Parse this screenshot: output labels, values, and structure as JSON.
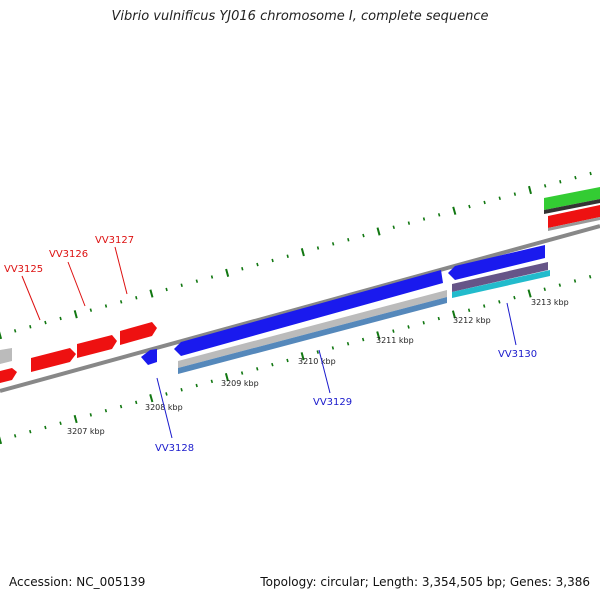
{
  "title": "Vibrio vulnificus YJ016 chromosome I, complete sequence",
  "footer": {
    "accession": "Accession: NC_005139",
    "topology": "Topology: circular; Length: 3,354,505 bp; Genes: 3,386"
  },
  "colors": {
    "forward_gene": "#ee1111",
    "reverse_gene": "#1a1aee",
    "forward_label": "#dd1111",
    "reverse_label": "#1a1acc",
    "backbone": "#888888",
    "tick": "#117711",
    "green_feature": "#33cc33",
    "gray_feature": "#bbbbbb",
    "steelblue_feature": "#5588bb",
    "cyan_feature": "#22bbcc",
    "purple_feature": "#665588"
  },
  "ruler": {
    "labels": [
      "3207 kbp",
      "3208 kbp",
      "3209 kbp",
      "3210 kbp",
      "3211 kbp",
      "3212 kbp",
      "3213 kbp"
    ]
  },
  "genes": {
    "forward": [
      {
        "label": "VV3125"
      },
      {
        "label": "VV3126"
      },
      {
        "label": "VV3127"
      }
    ],
    "reverse": [
      {
        "label": "VV3128"
      },
      {
        "label": "VV3129"
      },
      {
        "label": "VV3130"
      }
    ]
  }
}
